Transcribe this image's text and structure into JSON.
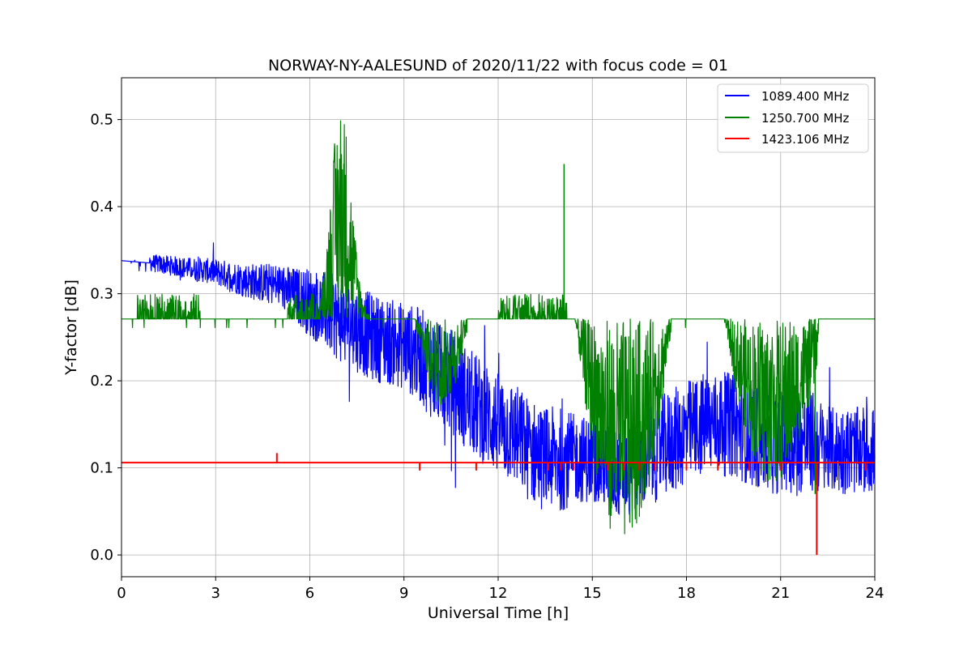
{
  "chart_data": {
    "type": "line",
    "title": "NORWAY-NY-AALESUND of 2020/11/22 with focus code = 01",
    "xlabel": "Universal Time [h]",
    "ylabel": "Y-factor [dB]",
    "xlim": [
      0,
      24
    ],
    "ylim": [
      -0.025,
      0.548
    ],
    "xticks": [
      0,
      3,
      6,
      9,
      12,
      15,
      18,
      21,
      24
    ],
    "xtick_labels": [
      "0",
      "3",
      "6",
      "9",
      "12",
      "15",
      "18",
      "21",
      "24"
    ],
    "yticks": [
      0.0,
      0.1,
      0.2,
      0.3,
      0.4,
      0.5
    ],
    "ytick_labels": [
      "0.0",
      "0.1",
      "0.2",
      "0.3",
      "0.4",
      "0.5"
    ],
    "grid": true,
    "legend_position": "top-right",
    "series": [
      {
        "name": "1089.400 MHz",
        "label": "1089.400 MHz",
        "color": "#0000ff",
        "x": [
          0,
          1.0,
          2.0,
          3.0,
          4.0,
          5.0,
          5.5,
          6.0,
          6.5,
          7.0,
          7.5,
          8.0,
          8.5,
          9.0,
          9.5,
          10.0,
          10.5,
          11.0,
          11.5,
          12.0,
          12.5,
          13.0,
          13.5,
          14.0,
          14.5,
          15.0,
          15.5,
          16.0,
          16.5,
          17.0,
          17.5,
          18.0,
          18.5,
          19.0,
          19.5,
          20.0,
          20.5,
          21.0,
          21.5,
          22.0,
          22.5,
          23.0,
          23.5,
          24.0
        ],
        "mid": [
          0.338,
          0.335,
          0.33,
          0.325,
          0.315,
          0.31,
          0.3,
          0.29,
          0.28,
          0.27,
          0.26,
          0.25,
          0.245,
          0.24,
          0.23,
          0.21,
          0.2,
          0.18,
          0.165,
          0.15,
          0.14,
          0.12,
          0.11,
          0.11,
          0.11,
          0.11,
          0.1,
          0.09,
          0.11,
          0.12,
          0.13,
          0.14,
          0.15,
          0.15,
          0.15,
          0.14,
          0.13,
          0.13,
          0.13,
          0.13,
          0.12,
          0.12,
          0.12,
          0.12
        ],
        "amp": [
          0.0,
          0.01,
          0.012,
          0.015,
          0.02,
          0.025,
          0.03,
          0.04,
          0.045,
          0.05,
          0.05,
          0.05,
          0.05,
          0.05,
          0.055,
          0.06,
          0.06,
          0.06,
          0.06,
          0.06,
          0.06,
          0.06,
          0.06,
          0.06,
          0.05,
          0.05,
          0.05,
          0.05,
          0.06,
          0.06,
          0.06,
          0.06,
          0.06,
          0.06,
          0.06,
          0.06,
          0.06,
          0.06,
          0.06,
          0.06,
          0.05,
          0.05,
          0.05,
          0.05
        ]
      },
      {
        "name": "1250.700 MHz",
        "label": "1250.700 MHz",
        "color": "#008000",
        "baseline": 0.271,
        "regions": [
          {
            "x0": 0.5,
            "x1": 2.5,
            "min": 0.271,
            "max": 0.3
          },
          {
            "x0": 5.3,
            "x1": 6.3,
            "min": 0.271,
            "max": 0.3
          },
          {
            "x0": 6.3,
            "x1": 7.9,
            "min": 0.27,
            "max": 0.521,
            "peak": 7.0
          },
          {
            "x0": 9.3,
            "x1": 11.0,
            "min": 0.17,
            "max": 0.271,
            "trough": 10.2
          },
          {
            "x0": 12.0,
            "x1": 14.2,
            "min": 0.271,
            "max": 0.3
          },
          {
            "x0": 14.4,
            "x1": 17.5,
            "min": 0.01,
            "max": 0.271,
            "trough": 16.0
          },
          {
            "x0": 19.0,
            "x1": 22.2,
            "min": 0.08,
            "max": 0.271,
            "trough": 20.8
          }
        ],
        "spikes": [
          {
            "x": 14.1,
            "y": 0.449
          },
          {
            "x": 22.1,
            "y": 0.07
          }
        ]
      },
      {
        "name": "1423.106 MHz",
        "label": "1423.106 MHz",
        "color": "#ff0000",
        "baseline": 0.106,
        "spikes": [
          {
            "x": 4.95,
            "y": 0.117
          },
          {
            "x": 9.5,
            "y": 0.097
          },
          {
            "x": 11.3,
            "y": 0.097
          },
          {
            "x": 13.6,
            "y": 0.097
          },
          {
            "x": 14.0,
            "y": 0.097
          },
          {
            "x": 14.4,
            "y": 0.097
          },
          {
            "x": 15.5,
            "y": 0.097
          },
          {
            "x": 16.0,
            "y": 0.097
          },
          {
            "x": 16.5,
            "y": 0.097
          },
          {
            "x": 17.0,
            "y": 0.097
          },
          {
            "x": 18.0,
            "y": 0.097
          },
          {
            "x": 19.0,
            "y": 0.097
          },
          {
            "x": 20.0,
            "y": 0.097
          },
          {
            "x": 21.0,
            "y": 0.097
          },
          {
            "x": 22.15,
            "y": 0.0
          },
          {
            "x": 23.7,
            "y": 0.097
          }
        ]
      }
    ]
  }
}
